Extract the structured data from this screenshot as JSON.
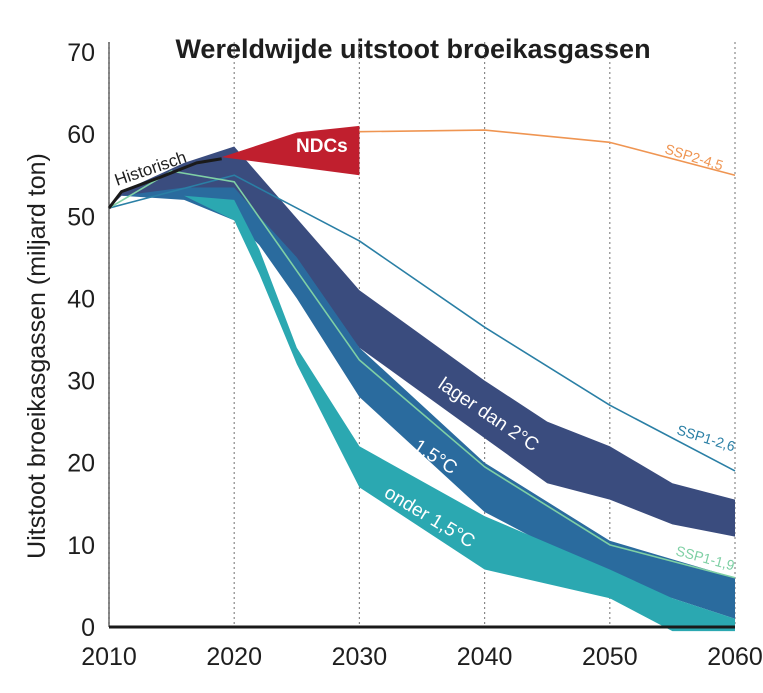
{
  "chart_data": {
    "type": "area",
    "title": "Wereldwijde uitstoot broeikasgassen",
    "ylabel": "Uitstoot broeikasgassen (miljard ton)",
    "xlabel": "",
    "xlim": [
      2010,
      2060
    ],
    "ylim": [
      0,
      70
    ],
    "x_ticks": [
      2010,
      2020,
      2030,
      2040,
      2050,
      2060
    ],
    "y_ticks": [
      0,
      10,
      20,
      30,
      40,
      50,
      60,
      70
    ],
    "grid": "vertical dotted",
    "colors": {
      "band_2c": "#3a4c7e",
      "band_15c": "#2a6b9e",
      "band_below15c": "#2ba8b1",
      "ndc": "#c01f2e",
      "ssp2": "#ef9552",
      "ssp1_26": "#2a7fa5",
      "ssp1_19": "#7fd0a5",
      "historical": "#1a1a1a",
      "axis": "#1a1a1a",
      "grid": "#888888"
    },
    "bands": [
      {
        "key": "band_2c",
        "name": "lager dan 2°C",
        "x": [
          2010,
          2011,
          2016,
          2020,
          2030,
          2040,
          2045,
          2050,
          2055,
          2060
        ],
        "upper": [
          51,
          53,
          56.5,
          58.5,
          41,
          30,
          25,
          22,
          17.5,
          15.5
        ],
        "lower": [
          51,
          52.5,
          52.5,
          52,
          34,
          23,
          17.5,
          15.5,
          12.5,
          11
        ]
      },
      {
        "key": "band_15c",
        "name": "1,5°C",
        "x": [
          2010,
          2011,
          2016,
          2020,
          2022,
          2025,
          2030,
          2040,
          2050,
          2060
        ],
        "upper": [
          51,
          52.5,
          53.5,
          53.5,
          50,
          45,
          34,
          20,
          10.5,
          6
        ],
        "lower": [
          51,
          52.5,
          52,
          49.5,
          46.5,
          40,
          28,
          14,
          6,
          1
        ]
      },
      {
        "key": "band_below15c",
        "name": "onder 1,5°C",
        "x": [
          2010,
          2016,
          2020,
          2022,
          2025,
          2030,
          2040,
          2050,
          2055,
          2060
        ],
        "upper": [
          51,
          52.5,
          52,
          46,
          34,
          22,
          13.5,
          7,
          3.5,
          1
        ],
        "lower": [
          51,
          52.5,
          49.5,
          43,
          32,
          17,
          7,
          3.5,
          -0.5,
          -0.5
        ]
      }
    ],
    "ndc": {
      "name": "NDCs",
      "x": [
        2019,
        2025,
        2030
      ],
      "upper": [
        57.2,
        60.2,
        61
      ],
      "lower": [
        57.2,
        56,
        55
      ]
    },
    "series": [
      {
        "key": "ssp2",
        "name": "SSP2-4,5",
        "x": [
          2030,
          2040,
          2050,
          2060
        ],
        "y": [
          60.3,
          60.5,
          59,
          55
        ]
      },
      {
        "key": "ssp1_26",
        "name": "SSP1-2,6",
        "x": [
          2010,
          2020,
          2030,
          2040,
          2050,
          2060
        ],
        "y": [
          51,
          55,
          47,
          36.5,
          27,
          19
        ]
      },
      {
        "key": "ssp1_19",
        "name": "SSP1-1,9",
        "x": [
          2010,
          2015,
          2020,
          2030,
          2040,
          2050,
          2060
        ],
        "y": [
          51,
          55.5,
          54.2,
          32.5,
          19.5,
          10,
          6
        ]
      },
      {
        "key": "historical",
        "name": "Historisch",
        "x": [
          2010,
          2011,
          2014,
          2017,
          2019
        ],
        "y": [
          51,
          53,
          54.7,
          56.5,
          57
        ]
      }
    ]
  }
}
